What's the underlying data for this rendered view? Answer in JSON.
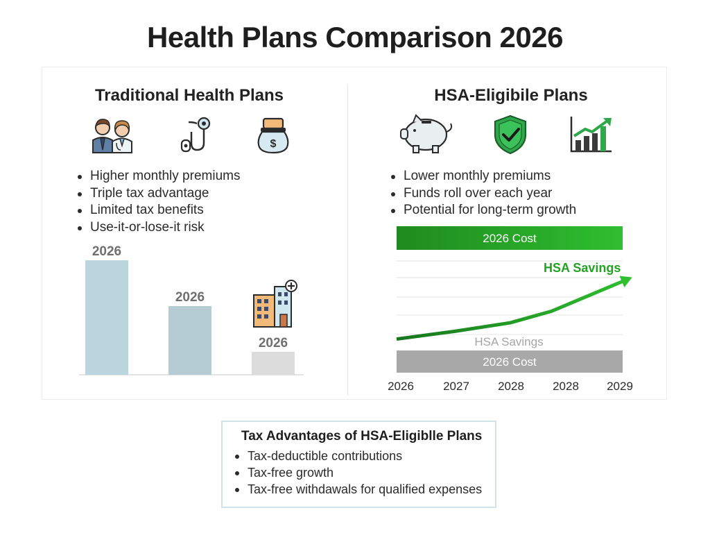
{
  "header": {
    "title": "Health Plans Comparison 2026"
  },
  "left_panel": {
    "title": "Traditional Health Plans",
    "icons": [
      "doctors-icon",
      "stethoscope-icon",
      "money-bag-icon"
    ],
    "bullets": [
      "Higher monthly premiums",
      "Triple tax advantage",
      "Limited tax benefits",
      "Use-it-or-lose-it risk"
    ]
  },
  "right_panel": {
    "title": "HSA-Eligibile Plans",
    "icons": [
      "piggy-bank-icon",
      "shield-check-icon",
      "growth-chart-icon"
    ],
    "bullets": [
      "Lower monthly premiums",
      "Funds roll over each year",
      "Potential for long-term growth"
    ]
  },
  "tax_box": {
    "title": "Tax Advantages of HSA-Eligiblle Plans",
    "bullets": [
      "Tax-deductible contributions",
      "Tax-free growth",
      "Tax-free withdawals for qualified expenses"
    ]
  },
  "colors": {
    "bar_1": "#bcd6e0",
    "bar_2": "#b6ccd4",
    "bar_3": "#dcdcdc",
    "green_dark": "#1f8a1f",
    "green_light": "#2fbf2f",
    "gray_band": "#a8a8a8",
    "gridline": "#e4e4e4"
  },
  "chart_data": [
    {
      "type": "bar",
      "categories": [
        "2026",
        "2026",
        "2026"
      ],
      "values": [
        100,
        60,
        20
      ],
      "ylim": [
        0,
        100
      ],
      "title": "",
      "xlabel": "",
      "ylabel": "",
      "grid": false,
      "legend": "none",
      "annotation_icon": "hospital-building-icon"
    },
    {
      "type": "line",
      "x": [
        "2026",
        "2027",
        "2028",
        "2028",
        "2029"
      ],
      "ylim": [
        0,
        10
      ],
      "series": [
        {
          "name": "HSA Savings",
          "values": [
            1.2,
            2.2,
            3.3,
            4.8,
            9.0
          ]
        }
      ],
      "bands": [
        {
          "label": "2026 Cost",
          "position": "top",
          "color": "green"
        },
        {
          "label": "2026 Cost",
          "position": "bottom",
          "color": "gray"
        }
      ],
      "annotations": [
        "HSA Savings",
        "HSA Savings"
      ],
      "grid": true,
      "title": "",
      "xlabel": "",
      "ylabel": ""
    }
  ]
}
